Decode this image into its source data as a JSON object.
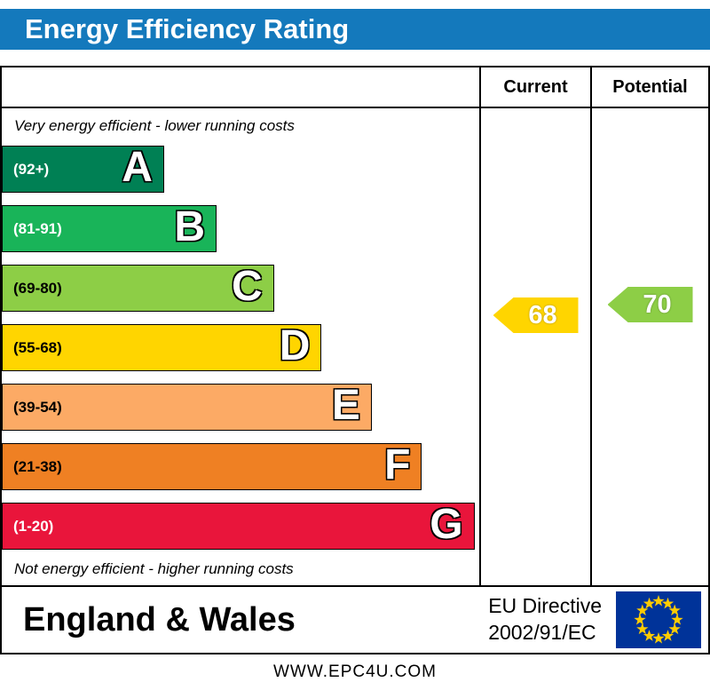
{
  "title": "Energy Efficiency Rating",
  "table": {
    "current_header": "Current",
    "potential_header": "Potential"
  },
  "notes": {
    "top": "Very energy efficient - lower running costs",
    "bottom": "Not energy efficient - higher running costs"
  },
  "chart_data": {
    "type": "bar",
    "title": "Energy Efficiency Rating",
    "bands": [
      {
        "letter": "A",
        "range": "(92+)",
        "color": "#008054",
        "width_pct": 34,
        "range_text_color": "#ffffff"
      },
      {
        "letter": "B",
        "range": "(81-91)",
        "color": "#19b459",
        "width_pct": 45,
        "range_text_color": "#ffffff"
      },
      {
        "letter": "C",
        "range": "(69-80)",
        "color": "#8dce46",
        "width_pct": 57,
        "range_text_color": "#000000"
      },
      {
        "letter": "D",
        "range": "(55-68)",
        "color": "#ffd500",
        "width_pct": 67,
        "range_text_color": "#000000"
      },
      {
        "letter": "E",
        "range": "(39-54)",
        "color": "#fcaa65",
        "width_pct": 77.5,
        "range_text_color": "#000000"
      },
      {
        "letter": "F",
        "range": "(21-38)",
        "color": "#ef8023",
        "width_pct": 88,
        "range_text_color": "#000000"
      },
      {
        "letter": "G",
        "range": "(1-20)",
        "color": "#e9153b",
        "width_pct": 99,
        "range_text_color": "#ffffff"
      }
    ],
    "current": {
      "value": 68,
      "band": "D",
      "color": "#ffd500"
    },
    "potential": {
      "value": 70,
      "band": "C",
      "color": "#8dce46"
    },
    "annotations": [
      "Very energy efficient - lower running costs",
      "Not energy efficient - higher running costs"
    ]
  },
  "footer": {
    "region": "England & Wales",
    "directive_line1": "EU Directive",
    "directive_line2": "2002/91/EC"
  },
  "website": "WWW.EPC4U.COM",
  "colors": {
    "title_bg": "#1479bc",
    "title_text": "#ffffff",
    "border": "#000000",
    "flag_bg": "#003399",
    "flag_star": "#ffcc00"
  }
}
